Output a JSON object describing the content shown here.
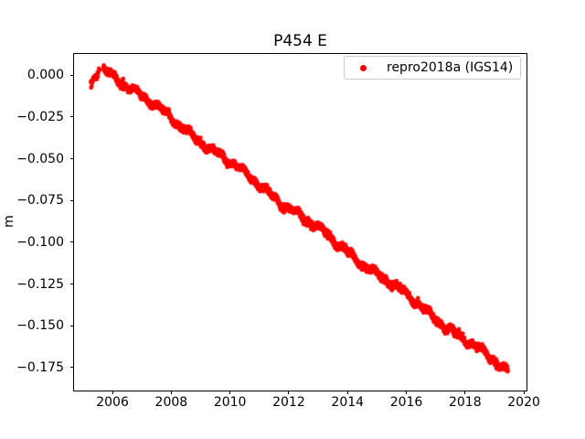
{
  "chart_data": {
    "type": "scatter",
    "title": "P454 E",
    "xlabel": "",
    "ylabel": "m",
    "grid": false,
    "xlim": [
      2004.66,
      2020.09
    ],
    "ylim": [
      -0.1888,
      0.01345
    ],
    "xticks": {
      "values": [
        2006,
        2008,
        2010,
        2012,
        2014,
        2016,
        2018,
        2020
      ],
      "labels": [
        "2006",
        "2008",
        "2010",
        "2012",
        "2014",
        "2016",
        "2018",
        "2020"
      ]
    },
    "yticks": {
      "values": [
        0.0,
        -0.025,
        -0.05,
        -0.075,
        -0.1,
        -0.125,
        -0.15,
        -0.175
      ],
      "labels": [
        "0.000",
        "−0.025",
        "−0.050",
        "−0.075",
        "−0.100",
        "−0.125",
        "−0.150",
        "−0.175"
      ]
    },
    "legend": {
      "location": "upper-right",
      "border_color": "#cccccc",
      "entries": [
        {
          "label": "repro2018a (IGS14)",
          "color": "#ff0000",
          "marker": "dot"
        }
      ]
    },
    "series": [
      {
        "name": "repro2018a (IGS14)",
        "color": "#ff0000",
        "marker": "dot",
        "marker_diameter_px": 4.6,
        "trend": {
          "x_start": 2005.69,
          "y_start": 0.0045,
          "x_end": 2019.45,
          "y_end": -0.1775,
          "slope_m_per_yr": -0.01324
        },
        "early_cluster": {
          "x_start": 2005.26,
          "x_end": 2005.56,
          "y_start": -0.005,
          "y_end": 0.002,
          "n_points": 30,
          "jitter_sigma": 0.0012
        },
        "samples_per_year": 365,
        "jitter_sigma": 0.0009,
        "wiggle": {
          "amplitudes": [
            0.0014,
            0.0009,
            0.0011
          ],
          "periods_yr": [
            0.9,
            0.37,
            2.8
          ]
        },
        "seed": 42
      }
    ]
  }
}
